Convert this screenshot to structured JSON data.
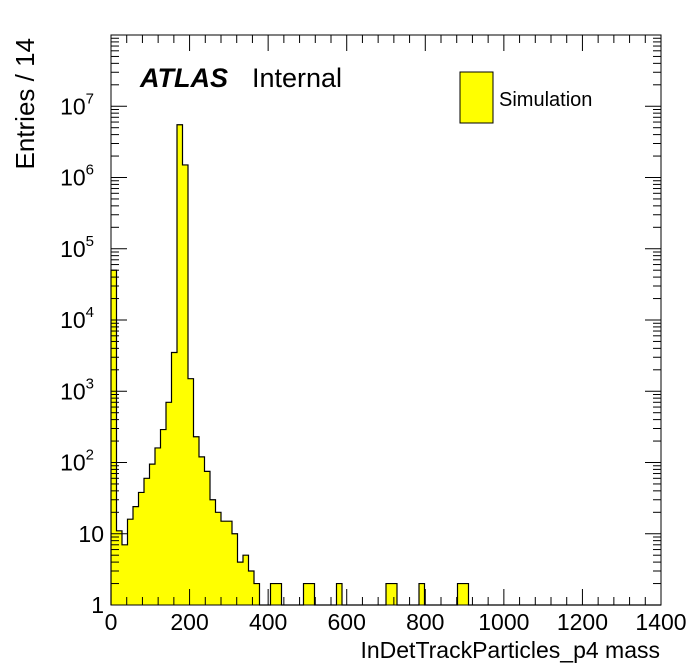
{
  "chart_data": {
    "type": "bar",
    "subtype": "histogram",
    "xlabel": "InDetTrackParticles_p4 mass",
    "ylabel": "Entries / 14",
    "xlim": [
      0,
      1400
    ],
    "ylim": [
      1,
      100000000
    ],
    "yscale": "log",
    "bin_width": 14,
    "x_ticks": [
      "0",
      "200",
      "400",
      "600",
      "800",
      "1000",
      "1200",
      "1400"
    ],
    "y_ticks": [
      {
        "base": "1",
        "exp": ""
      },
      {
        "base": "10",
        "exp": ""
      },
      {
        "base": "10",
        "exp": "2"
      },
      {
        "base": "10",
        "exp": "3"
      },
      {
        "base": "10",
        "exp": "4"
      },
      {
        "base": "10",
        "exp": "5"
      },
      {
        "base": "10",
        "exp": "6"
      },
      {
        "base": "10",
        "exp": "7"
      }
    ],
    "legend_position": "top-right",
    "fill_color": "#ffff00",
    "line_color": "#000000",
    "series": [
      {
        "name": "Simulation",
        "values": [
          50000,
          11,
          7,
          16,
          24,
          38,
          60,
          95,
          160,
          290,
          700,
          3500,
          5500000,
          1500000,
          1500,
          230,
          120,
          75,
          30,
          20,
          15,
          15,
          10,
          4,
          5,
          3,
          2,
          0,
          1,
          2,
          2,
          1,
          0,
          0,
          1,
          2,
          2,
          1,
          0,
          1,
          0,
          2,
          1,
          1,
          0,
          0,
          0,
          0,
          0,
          0,
          2,
          2,
          1,
          0,
          0,
          0,
          2,
          1,
          1,
          0,
          1,
          0,
          0,
          2,
          2,
          1,
          1,
          0,
          0,
          0,
          0,
          0,
          0,
          0,
          0,
          0,
          0,
          0,
          0,
          0,
          0,
          0,
          0,
          0,
          0,
          0,
          0,
          0,
          0,
          0,
          0,
          0,
          0,
          0,
          0,
          0,
          0,
          0,
          0,
          0
        ]
      }
    ],
    "bins_explicit": [
      {
        "x_low": 0,
        "value": 50000
      },
      {
        "x_low": 14,
        "value": 11
      },
      {
        "x_low": 28,
        "value": 7
      },
      {
        "x_low": 42,
        "value": 16
      },
      {
        "x_low": 56,
        "value": 24
      },
      {
        "x_low": 70,
        "value": 38
      },
      {
        "x_low": 84,
        "value": 60
      },
      {
        "x_low": 98,
        "value": 95
      },
      {
        "x_low": 112,
        "value": 160
      },
      {
        "x_low": 126,
        "value": 290
      },
      {
        "x_low": 140,
        "value": 700
      },
      {
        "x_low": 154,
        "value": 3500
      },
      {
        "x_low": 168,
        "value": 5500000
      },
      {
        "x_low": 182,
        "value": 1500000
      },
      {
        "x_low": 196,
        "value": 1500
      },
      {
        "x_low": 210,
        "value": 230
      },
      {
        "x_low": 224,
        "value": 120
      },
      {
        "x_low": 238,
        "value": 75
      },
      {
        "x_low": 252,
        "value": 30
      },
      {
        "x_low": 266,
        "value": 20
      },
      {
        "x_low": 280,
        "value": 15
      },
      {
        "x_low": 294,
        "value": 15
      },
      {
        "x_low": 308,
        "value": 10
      },
      {
        "x_low": 322,
        "value": 4
      },
      {
        "x_low": 336,
        "value": 5
      },
      {
        "x_low": 350,
        "value": 3
      },
      {
        "x_low": 364,
        "value": 2
      },
      {
        "x_low": 378,
        "value": 0
      },
      {
        "x_low": 392,
        "value": 1
      },
      {
        "x_low": 406,
        "value": 2
      },
      {
        "x_low": 420,
        "value": 2
      },
      {
        "x_low": 434,
        "value": 1
      },
      {
        "x_low": 448,
        "value": 0
      },
      {
        "x_low": 462,
        "value": 0
      },
      {
        "x_low": 476,
        "value": 1
      },
      {
        "x_low": 490,
        "value": 2
      },
      {
        "x_low": 504,
        "value": 2
      },
      {
        "x_low": 518,
        "value": 1
      }
    ]
  },
  "labels": {
    "atlas": "ATLAS",
    "internal": "Internal",
    "legend_label": "Simulation"
  }
}
